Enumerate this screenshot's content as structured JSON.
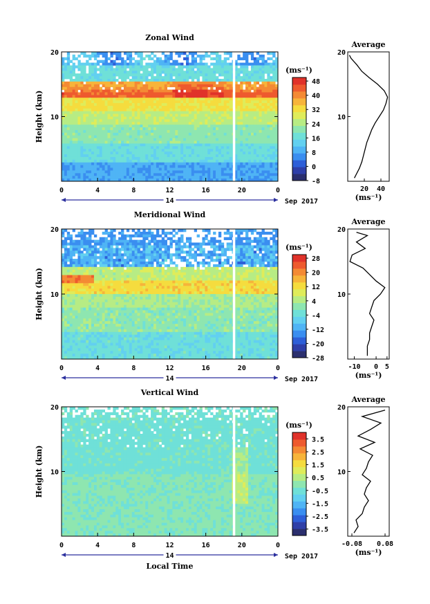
{
  "chart_data": [
    {
      "type": "heatmap",
      "title": "Zonal Wind",
      "ylabel": "Height (km)",
      "unit": "(ms⁻¹)",
      "y_ticks": [
        "10",
        "20"
      ],
      "x_ticks": [
        "0",
        "4",
        "8",
        "12",
        "16",
        "20",
        "0"
      ],
      "date_label": "14",
      "month_label": "Sep 2017",
      "colorbar_ticks": [
        "48",
        "40",
        "32",
        "24",
        "16",
        "8",
        "0",
        "-8"
      ],
      "colorbar_range": [
        -8,
        50
      ],
      "profile": {
        "title": "Average",
        "x_ticks": [
          "20",
          "40"
        ],
        "xlabel": "(ms⁻¹)",
        "y_ticks": [
          "10",
          "20"
        ],
        "xlim": [
          0,
          50
        ],
        "heights": [
          0.5,
          2,
          3,
          4,
          5,
          6,
          7,
          8,
          9,
          10,
          11,
          12,
          13,
          14,
          15,
          16,
          17,
          18,
          19,
          19.5
        ],
        "values": [
          8,
          14,
          17,
          19,
          21,
          23,
          26,
          29,
          33,
          38,
          43,
          46,
          48,
          44,
          36,
          26,
          17,
          11,
          4,
          2
        ]
      }
    },
    {
      "type": "heatmap",
      "title": "Meridional Wind",
      "ylabel": "Height (km)",
      "unit": "(ms⁻¹)",
      "y_ticks": [
        "10",
        "20"
      ],
      "x_ticks": [
        "0",
        "4",
        "8",
        "12",
        "16",
        "20",
        "0"
      ],
      "date_label": "14",
      "month_label": "Sep 2017",
      "colorbar_ticks": [
        "28",
        "20",
        "12",
        "4",
        "-4",
        "-12",
        "-20",
        "-28"
      ],
      "colorbar_range": [
        -28,
        30
      ],
      "profile": {
        "title": "Average",
        "x_ticks": [
          "-10",
          "0",
          "5"
        ],
        "xlabel": "(ms⁻¹)",
        "y_ticks": [
          "10",
          "20"
        ],
        "xlim": [
          -13,
          6
        ],
        "heights": [
          0.5,
          2,
          3,
          4,
          5,
          6,
          7,
          8,
          9,
          10,
          11,
          12,
          13,
          14,
          15,
          16,
          17,
          18,
          19,
          19.5
        ],
        "values": [
          -4,
          -4,
          -3,
          -3,
          -2,
          -1,
          -3,
          -2,
          -1,
          2,
          4,
          0,
          -3,
          -6,
          -12,
          -11,
          -5,
          -9,
          -4,
          -9
        ]
      }
    },
    {
      "type": "heatmap",
      "title": "Vertical Wind",
      "ylabel": "Height (km)",
      "xlabel": "Local Time",
      "unit": "(ms⁻¹)",
      "y_ticks": [
        "10",
        "20"
      ],
      "x_ticks": [
        "0",
        "4",
        "8",
        "12",
        "16",
        "20",
        "0"
      ],
      "date_label": "14",
      "month_label": "Sep 2017",
      "colorbar_ticks": [
        "3.5",
        "2.5",
        "1.5",
        "0.5",
        "-0.5",
        "-1.5",
        "-2.5",
        "-3.5"
      ],
      "colorbar_range": [
        -4,
        4
      ],
      "profile": {
        "title": "Average",
        "x_ticks": [
          "-0.08",
          "0.08"
        ],
        "xlabel": "(ms⁻¹)",
        "y_ticks": [
          "10",
          "20"
        ],
        "xlim": [
          -0.1,
          0.1
        ],
        "heights": [
          0.5,
          1.5,
          2.5,
          3.5,
          4.5,
          5.5,
          6.5,
          7.5,
          8.5,
          9.5,
          10.5,
          11.5,
          12.5,
          13.5,
          14.5,
          15.5,
          16.5,
          17.5,
          18.5,
          19.5
        ],
        "values": [
          -0.07,
          -0.05,
          -0.06,
          -0.03,
          -0.02,
          0.0,
          -0.02,
          -0.01,
          0.01,
          -0.03,
          -0.01,
          0.0,
          0.02,
          -0.04,
          0.03,
          -0.05,
          0.01,
          0.06,
          -0.03,
          0.08
        ]
      }
    }
  ]
}
